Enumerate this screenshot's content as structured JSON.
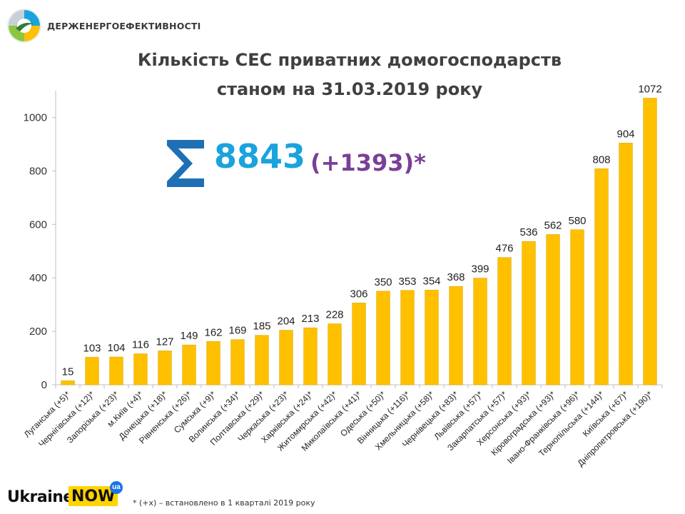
{
  "header": {
    "org_name": "ДЕРЖЕНЕРГОЕФЕКТИВНОСТІ",
    "title_line1": "Кількість СЕС приватних домогосподарств",
    "title_line2": "станом на 31.03.2019 року"
  },
  "summary": {
    "total": "8843",
    "delta": "(+1393)*",
    "icon": "sigma-icon"
  },
  "colors": {
    "bar": "#FFC000",
    "bar_stroke": "#E0A800",
    "sum_total": "#1AA3DD",
    "sum_delta": "#7A3F98",
    "axis": "#BFBFBF"
  },
  "chart_data": {
    "type": "bar",
    "categories": [
      "Луганська (+5)*",
      "Чернігівська (+12)*",
      "Запорізька (+23)*",
      "м.Київ (+4)*",
      "Донецька (+18)*",
      "Рівненська (+26)*",
      "Сумська (+9)*",
      "Волинська (+34)*",
      "Полтавська (+29)*",
      "Черкаська (+23)*",
      "Харківська  (+24)*",
      "Житомирська (+42)*",
      "Миколаївська (+41)*",
      "Одеська (+50)*",
      "Вінницька (+116)*",
      "Хмельницька (+58)*",
      "Чернівецька (+83)*",
      "Львівська (+57)*",
      "Закарпатська (+57)*",
      "Херсонська (+93)*",
      "Кіровоградська (+93)*",
      "Івано-Франківська (+96)*",
      "Тернопільська (+144)*",
      "Київська (+67)*",
      "Дніпропетровська (+190)*"
    ],
    "values": [
      15,
      103,
      104,
      116,
      127,
      149,
      162,
      169,
      185,
      204,
      213,
      228,
      306,
      350,
      353,
      354,
      368,
      399,
      476,
      536,
      562,
      580,
      808,
      904,
      1072
    ],
    "ylim": [
      0,
      1100
    ],
    "yticks": [
      0,
      200,
      400,
      600,
      800,
      1000
    ],
    "grid": false,
    "data_labels": true
  },
  "footer": {
    "brand_text": "Ukraine",
    "brand_now": "NOW",
    "brand_badge": "ua",
    "footnote": "* (+x) – встановлено в 1 кварталі 2019 року"
  }
}
